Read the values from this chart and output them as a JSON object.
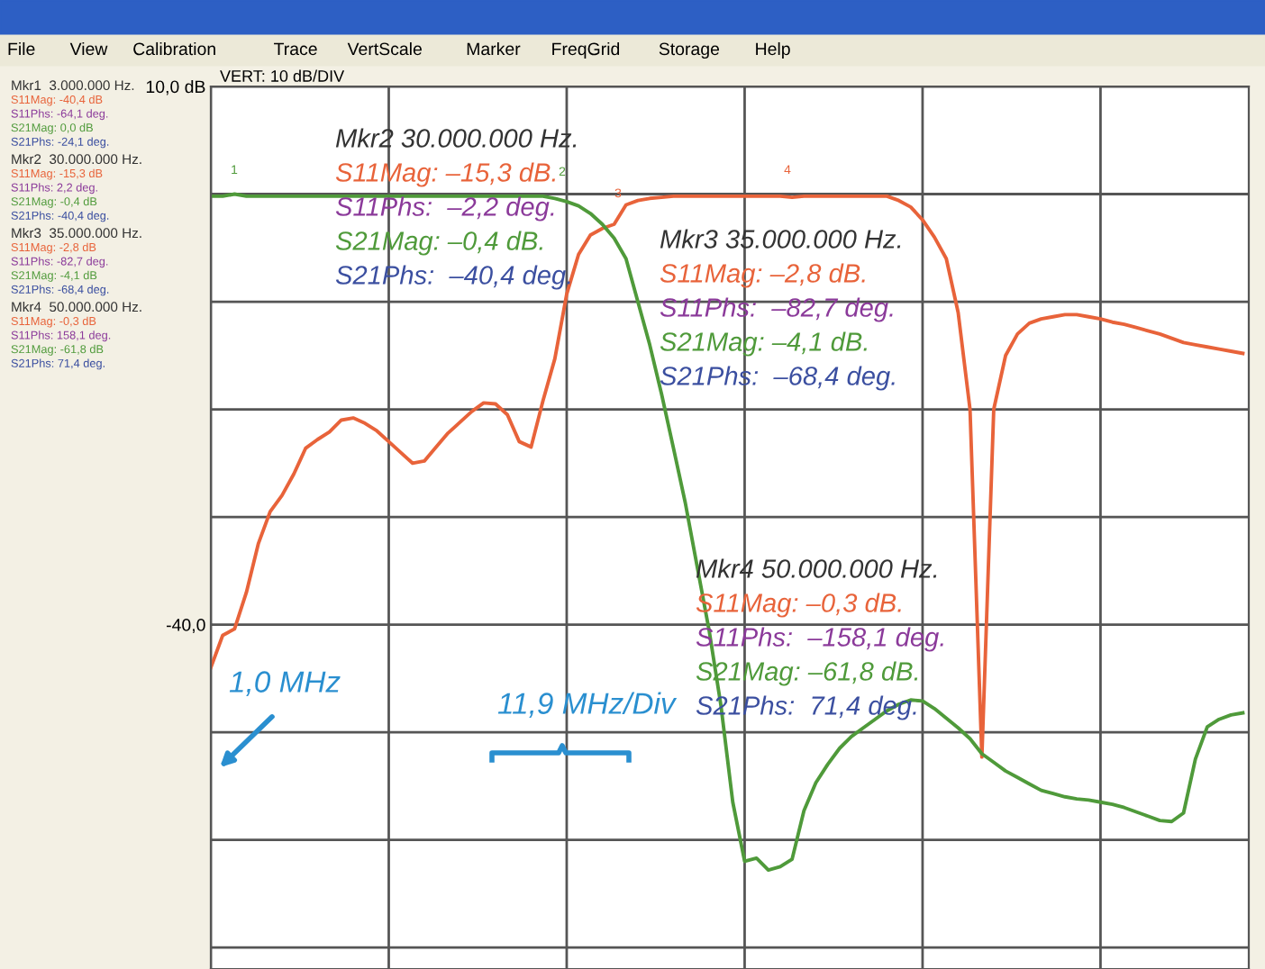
{
  "chart_data": {
    "type": "line",
    "categories": [
      null,
      null,
      null,
      null,
      null,
      null,
      null,
      null,
      null,
      null,
      null,
      null,
      null,
      null,
      null,
      null,
      null,
      null,
      null,
      null,
      null,
      null,
      null,
      null,
      null,
      null,
      null,
      null,
      null,
      null,
      null,
      null,
      null,
      null,
      null,
      null,
      null,
      null,
      null,
      null,
      null,
      null,
      null,
      null,
      null,
      null,
      null,
      null,
      null,
      null,
      null,
      null,
      null,
      null,
      null,
      null,
      null,
      null,
      null,
      null,
      null,
      null,
      null,
      null,
      null,
      null,
      null,
      null,
      null,
      null,
      null,
      null,
      null,
      null,
      null,
      null,
      null,
      null,
      null,
      null,
      null,
      null,
      null,
      null,
      null,
      null,
      null,
      null
    ],
    "series": [
      {
        "color": "#e8633a",
        "values": [
          -44,
          -41,
          -40.4,
          -37,
          -32.5,
          -29.5,
          -28,
          -26,
          -23.6,
          -22.8,
          -22.1,
          -21,
          -20.8,
          -21.3,
          -22,
          -23,
          -24,
          -25,
          -24.8,
          -23.5,
          -22.2,
          -21.2,
          -20.2,
          -19.4,
          -19.5,
          -20.5,
          -23,
          -23.5,
          -19.2,
          -15.3,
          -9.3,
          -5.6,
          -3.8,
          -3.2,
          -2.8,
          -1,
          -0.6,
          -0.4,
          -0.3,
          -0.2,
          -0.2,
          -0.2,
          -0.2,
          -0.2,
          -0.2,
          -0.2,
          -0.2,
          -0.2,
          -0.2,
          -0.3,
          -0.2,
          -0.2,
          -0.2,
          -0.2,
          -0.2,
          -0.2,
          -0.2,
          -0.2,
          -0.6,
          -1.2,
          -2.4,
          -4,
          -6,
          -11,
          -20,
          -52.3,
          -20,
          -15,
          -13,
          -12,
          -11.6,
          -11.4,
          -11.2,
          -11.2,
          -11.4,
          -11.6,
          -11.9,
          -12.1,
          -12.4,
          -12.7,
          -13,
          -13.4,
          -13.8,
          -14,
          -14.2,
          -14.4,
          -14.6,
          -14.8
        ]
      },
      {
        "color": "#4f9a3a",
        "values": [
          -0.2,
          -0.2,
          0.0,
          -0.2,
          -0.2,
          -0.2,
          -0.2,
          -0.2,
          -0.2,
          -0.2,
          -0.2,
          -0.2,
          -0.2,
          -0.2,
          -0.2,
          -0.2,
          -0.2,
          -0.2,
          -0.2,
          -0.2,
          -0.2,
          -0.2,
          -0.2,
          -0.2,
          -0.2,
          -0.2,
          -0.2,
          -0.2,
          -0.2,
          -0.4,
          -0.7,
          -1.1,
          -1.8,
          -2.8,
          -4.1,
          -6,
          -10,
          -14,
          -18.6,
          -23.6,
          -28.7,
          -34.6,
          -40.5,
          -47.5,
          -56.5,
          -62,
          -61.7,
          -62.8,
          -62.5,
          -61.8,
          -57.3,
          -54.7,
          -53,
          -51.5,
          -50.4,
          -49.6,
          -48.8,
          -48,
          -47.4,
          -47,
          -47.1,
          -47.8,
          -48.7,
          -49.6,
          -50.6,
          -52,
          -52.8,
          -53.6,
          -54.2,
          -54.8,
          -55.4,
          -55.7,
          -56,
          -56.2,
          -56.3,
          -56.5,
          -56.7,
          -57,
          -57.4,
          -57.8,
          -58.2,
          -58.3,
          -57.5,
          -52.5,
          -49.5,
          -48.8,
          -48.4,
          -48.2
        ]
      }
    ],
    "ylim": [
      -72,
      10
    ],
    "yticks": [
      {
        "value": 10,
        "label": "10,0 dB"
      },
      {
        "value": 0,
        "label": null
      },
      {
        "value": -10,
        "label": null
      },
      {
        "value": -20,
        "label": null
      },
      {
        "value": -30,
        "label": null
      },
      {
        "value": -40,
        "label": "-40,0"
      },
      {
        "value": -50,
        "label": null
      },
      {
        "value": -60,
        "label": null
      },
      {
        "value": -70,
        "label": null
      }
    ],
    "grid": true,
    "annotations": [
      "File",
      "View",
      "Calibration",
      "Trace",
      "VertScale",
      "Marker",
      "FreqGrid",
      "Storage",
      "Help",
      "Mkr1  3.000.000 Hz.",
      "S11Mag: -40,4 dB",
      "S11Phs: -64,1 deg.",
      "S21Mag: 0,0 dB",
      "S21Phs: -24,1 deg.",
      "Mkr2  30.000.000 Hz.",
      "S11Mag: -15,3 dB",
      "S11Phs: 2,2 deg.",
      "S21Mag: -0,4 dB",
      "S21Phs: -40,4 deg.",
      "Mkr3  35.000.000 Hz.",
      "S11Mag: -2,8 dB",
      "S11Phs: -82,7 deg.",
      "S21Mag: -4,1 dB",
      "S21Phs: -68,4 deg.",
      "Mkr4  50.000.000 Hz.",
      "S11Mag: -0,3 dB",
      "S11Phs: 158,1 deg.",
      "S21Mag: -61,8 dB",
      "S21Phs: 71,4 deg.",
      "Mkr2 30.000.000 Hz.",
      "S11Mag: –15,3 dB.",
      "S11Phs:  –2,2 deg.",
      "S21Mag: –0,4 dB.",
      "S21Phs:  –40,4 deg.",
      "Mkr3 35.000.000 Hz.",
      "S11Mag: –2,8 dB.",
      "S11Phs:  –82,7 deg.",
      "S21Mag: –4,1 dB.",
      "S21Phs:  –68,4 deg.",
      "Mkr4 50.000.000 Hz.",
      "S11Mag: –0,3 dB.",
      "S11Phs:  –158,1 deg.",
      "S21Mag: –61,8 dB.",
      "S21Phs:  71,4 deg.",
      "VERT: 10 dB/DIV",
      "1,0 MHz",
      "11,9 MHz/Div",
      "1",
      "2",
      "3",
      "4"
    ]
  }
}
